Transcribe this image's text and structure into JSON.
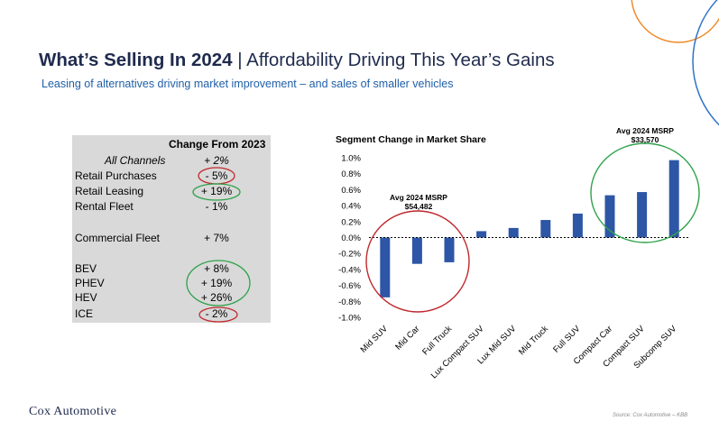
{
  "header": {
    "title_bold": "What’s Selling In 2024",
    "title_rest": " | Affordability Driving This Year’s Gains",
    "subtitle": "Leasing of alternatives driving market improvement – and sales of smaller vehicles"
  },
  "table": {
    "header": "Change From 2023",
    "rows": [
      {
        "label": "All Channels",
        "value": "+ 2%"
      },
      {
        "label": "Retail Purchases",
        "value": "- 5%"
      },
      {
        "label": "Retail Leasing",
        "value": "+ 19%"
      },
      {
        "label": "Rental Fleet",
        "value": "- 1%"
      },
      {
        "label": "Commercial Fleet",
        "value": "+ 7%"
      },
      {
        "label": "BEV",
        "value": "+ 8%"
      },
      {
        "label": "PHEV",
        "value": "+ 19%"
      },
      {
        "label": "HEV",
        "value": "+ 26%"
      },
      {
        "label": "ICE",
        "value": "- 2%"
      }
    ]
  },
  "chart_data": {
    "type": "bar",
    "title": "Segment Change in Market Share",
    "categories": [
      "Mid SUV",
      "Mid Car",
      "Full Truck",
      "Lux Compact SUV",
      "Lux Mid SUV",
      "Mid Truck",
      "Full SUV",
      "Compact Car",
      "Compact SUV",
      "Subcomp SUV"
    ],
    "values": [
      -0.75,
      -0.33,
      -0.31,
      0.08,
      0.12,
      0.22,
      0.3,
      0.53,
      0.57,
      0.97
    ],
    "ylim": [
      -1.0,
      1.0
    ],
    "yticks": [
      "1.0%",
      "0.8%",
      "0.6%",
      "0.4%",
      "0.2%",
      "0.0%",
      "-0.2%",
      "-0.4%",
      "-0.6%",
      "-0.8%",
      "-1.0%"
    ],
    "bar_color": "#2e56a6",
    "annotations": [
      {
        "title": "Avg 2024 MSRP",
        "value": "$54,482",
        "ring_color": "#c0282d"
      },
      {
        "title": "Avg 2024 MSRP",
        "value": "$33,570",
        "ring_color": "#2ea24a"
      }
    ]
  },
  "footer": {
    "logo": "Cox Automotive",
    "source": "Source: Cox Automotive – KBB"
  },
  "colors": {
    "deco_orange": "#f08a28",
    "deco_blue": "#2f74c8",
    "ring_red": "#c0282d",
    "ring_green": "#2ea24a"
  }
}
